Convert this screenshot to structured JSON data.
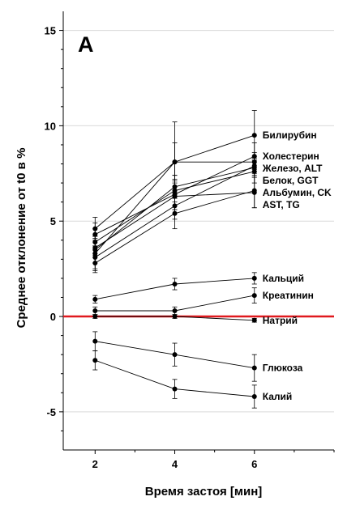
{
  "panel_label": "A",
  "chart_data": {
    "type": "line",
    "xlabel": "Время застоя [мин]",
    "ylabel": "Среднее отклонение от t0 в %",
    "xlim": [
      1.2,
      8.0
    ],
    "ylim": [
      -7,
      16
    ],
    "x_ticks": [
      2,
      4,
      6
    ],
    "y_ticks": [
      -5,
      0,
      5,
      10,
      15
    ],
    "grid": "horizontal",
    "reference_line": {
      "y": 0,
      "color": "#e0191e"
    },
    "series_color": "#000000",
    "x": [
      2,
      4,
      6
    ],
    "series": [
      {
        "name": "Билирубин",
        "values": [
          3.3,
          8.1,
          9.5
        ],
        "errors": [
          0.9,
          2.1,
          1.3
        ]
      },
      {
        "name": "Холестерин",
        "values": [
          4.3,
          6.4,
          8.4
        ],
        "errors": [
          0.6,
          0.8,
          0.7
        ]
      },
      {
        "name": "Железо, ALT",
        "values": [
          4.6,
          8.1,
          8.1
        ],
        "errors": [
          0.6,
          1.0,
          0.5
        ]
      },
      {
        "name": "Белок, GGT",
        "values": [
          3.5,
          6.8,
          7.8
        ],
        "errors": [
          0.7,
          0.6,
          0.5
        ]
      },
      {
        "name": "Альбумин, CK",
        "values": [
          3.9,
          6.6,
          7.6
        ],
        "errors": [
          0.7,
          0.8,
          0.6
        ]
      },
      {
        "name": "AST, TG",
        "values": [
          2.8,
          5.4,
          6.6
        ],
        "errors": [
          0.5,
          0.8,
          0.9
        ]
      },
      {
        "name": "",
        "values": [
          3.1,
          5.8,
          7.9
        ],
        "errors": [
          0.6,
          0.7,
          0.5
        ]
      },
      {
        "name": "",
        "values": [
          3.6,
          6.3,
          6.5
        ],
        "errors": [
          0.5,
          0.7,
          0.8
        ]
      },
      {
        "name": "Кальций",
        "values": [
          0.9,
          1.7,
          2.0
        ],
        "errors": [
          0.2,
          0.3,
          0.3
        ]
      },
      {
        "name": "Креатинин",
        "values": [
          0.3,
          0.3,
          1.1
        ],
        "errors": [
          0.2,
          0.2,
          0.4
        ]
      },
      {
        "name": "Натрий",
        "values": [
          0.0,
          0.0,
          -0.2
        ],
        "errors": [
          0.1,
          0.1,
          0.1
        ]
      },
      {
        "name": "Глюкоза",
        "values": [
          -1.3,
          -2.0,
          -2.7
        ],
        "errors": [
          0.5,
          0.6,
          0.7
        ]
      },
      {
        "name": "Калий",
        "values": [
          -2.3,
          -3.8,
          -4.2
        ],
        "errors": [
          0.5,
          0.5,
          0.6
        ]
      }
    ]
  }
}
